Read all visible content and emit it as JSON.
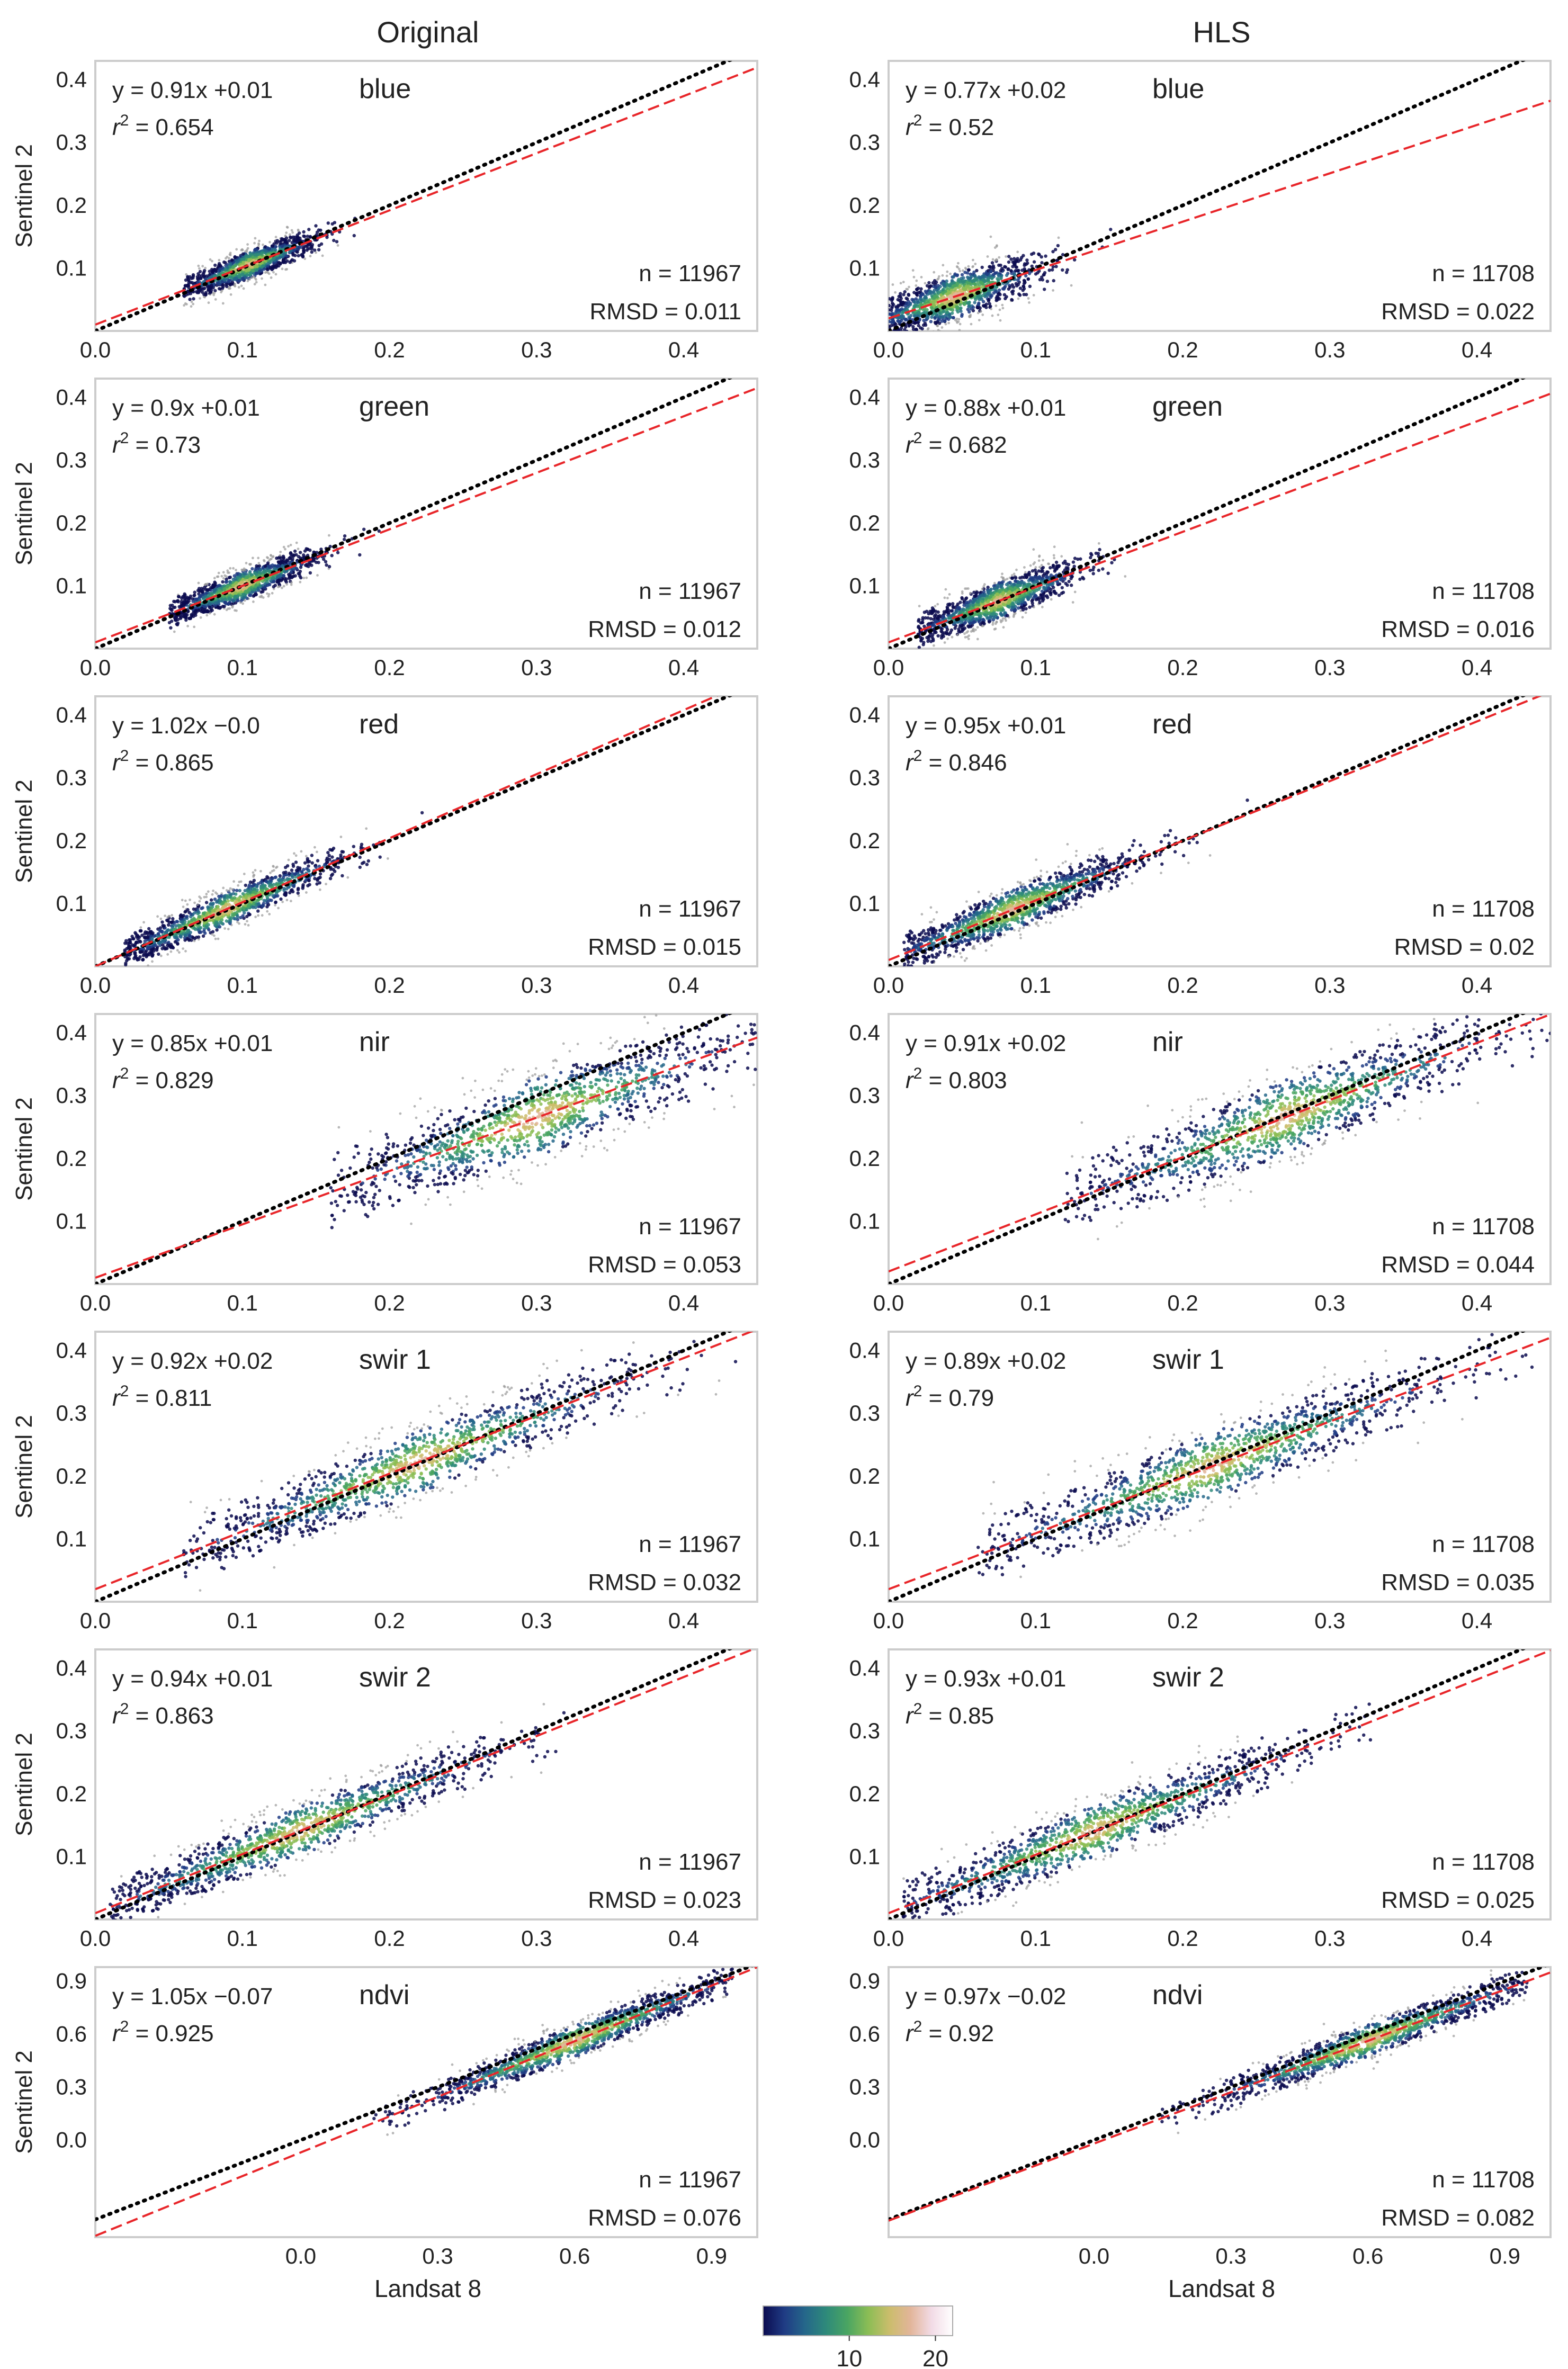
{
  "figure": {
    "column_titles": [
      "Original",
      "HLS"
    ],
    "xlabel": "Landsat 8",
    "ylabel": "Sentinel 2",
    "colorbar": {
      "ticks": [
        "10",
        "20"
      ],
      "tick_values": [
        10,
        20
      ],
      "range": [
        0,
        22
      ],
      "colors": [
        "#0b0b4f",
        "#1f3b84",
        "#25678a",
        "#2e8a7a",
        "#4aa562",
        "#8cbd55",
        "#cbbd6c",
        "#e2b59a",
        "#f2dbe6",
        "#ffffff"
      ]
    },
    "colors": {
      "identity_line": "#000000",
      "fit_line": "#e8262a",
      "frame": "#cccccc",
      "text": "#222222"
    }
  },
  "chart_data": [
    {
      "type": "scatter",
      "column": "Original",
      "band": "blue",
      "equation": "y = 0.91x +0.01",
      "r2": "0.654",
      "n": "n = 11967",
      "rmsd": "RMSD = 0.011",
      "slope": 0.91,
      "intercept": 0.01,
      "xlim": [
        0.0,
        0.45
      ],
      "ylim": [
        0.0,
        0.43
      ],
      "xticks": [
        "0.0",
        "0.1",
        "0.2",
        "0.3",
        "0.4"
      ],
      "xtick_values": [
        0.0,
        0.1,
        0.2,
        0.3,
        0.4
      ],
      "yticks": [
        "0.1",
        "0.2",
        "0.3",
        "0.4"
      ],
      "ytick_values": [
        0.1,
        0.2,
        0.3,
        0.4
      ],
      "cloud": {
        "x_mean": 0.105,
        "x_sd": 0.022,
        "x_min": 0.06,
        "x_max": 0.18,
        "y_sd": 0.012
      }
    },
    {
      "type": "scatter",
      "column": "HLS",
      "band": "blue",
      "equation": "y = 0.77x +0.02",
      "r2": "0.52",
      "n": "n = 11708",
      "rmsd": "RMSD = 0.022",
      "slope": 0.77,
      "intercept": 0.02,
      "xlim": [
        0.0,
        0.45
      ],
      "ylim": [
        0.0,
        0.43
      ],
      "xticks": [
        "0.0",
        "0.1",
        "0.2",
        "0.3",
        "0.4"
      ],
      "xtick_values": [
        0.0,
        0.1,
        0.2,
        0.3,
        0.4
      ],
      "yticks": [
        "0.1",
        "0.2",
        "0.3",
        "0.4"
      ],
      "ytick_values": [
        0.1,
        0.2,
        0.3,
        0.4
      ],
      "cloud": {
        "x_mean": 0.045,
        "x_sd": 0.028,
        "x_min": 0.0,
        "x_max": 0.16,
        "y_sd": 0.02
      }
    },
    {
      "type": "scatter",
      "column": "Original",
      "band": "green",
      "equation": "y = 0.9x +0.01",
      "r2": "0.73",
      "n": "n = 11967",
      "rmsd": "RMSD = 0.012",
      "slope": 0.9,
      "intercept": 0.01,
      "xlim": [
        0.0,
        0.45
      ],
      "ylim": [
        0.0,
        0.43
      ],
      "xticks": [
        "0.0",
        "0.1",
        "0.2",
        "0.3",
        "0.4"
      ],
      "xtick_values": [
        0.0,
        0.1,
        0.2,
        0.3,
        0.4
      ],
      "yticks": [
        "0.1",
        "0.2",
        "0.3",
        "0.4"
      ],
      "ytick_values": [
        0.1,
        0.2,
        0.3,
        0.4
      ],
      "cloud": {
        "x_mean": 0.1,
        "x_sd": 0.025,
        "x_min": 0.05,
        "x_max": 0.2,
        "y_sd": 0.013
      }
    },
    {
      "type": "scatter",
      "column": "HLS",
      "band": "green",
      "equation": "y = 0.88x +0.01",
      "r2": "0.682",
      "n": "n = 11708",
      "rmsd": "RMSD = 0.016",
      "slope": 0.88,
      "intercept": 0.01,
      "xlim": [
        0.0,
        0.45
      ],
      "ylim": [
        0.0,
        0.43
      ],
      "xticks": [
        "0.0",
        "0.1",
        "0.2",
        "0.3",
        "0.4"
      ],
      "xtick_values": [
        0.0,
        0.1,
        0.2,
        0.3,
        0.4
      ],
      "yticks": [
        "0.1",
        "0.2",
        "0.3",
        "0.4"
      ],
      "ytick_values": [
        0.1,
        0.2,
        0.3,
        0.4
      ],
      "cloud": {
        "x_mean": 0.075,
        "x_sd": 0.027,
        "x_min": 0.02,
        "x_max": 0.19,
        "y_sd": 0.016
      }
    },
    {
      "type": "scatter",
      "column": "Original",
      "band": "red",
      "equation": "y = 1.02x −0.0",
      "r2": "0.865",
      "n": "n = 11967",
      "rmsd": "RMSD = 0.015",
      "slope": 1.02,
      "intercept": 0.0,
      "xlim": [
        0.0,
        0.45
      ],
      "ylim": [
        0.0,
        0.43
      ],
      "xticks": [
        "0.0",
        "0.1",
        "0.2",
        "0.3",
        "0.4"
      ],
      "xtick_values": [
        0.0,
        0.1,
        0.2,
        0.3,
        0.4
      ],
      "yticks": [
        "0.1",
        "0.2",
        "0.3",
        "0.4"
      ],
      "ytick_values": [
        0.1,
        0.2,
        0.3,
        0.4
      ],
      "cloud": {
        "x_mean": 0.09,
        "x_sd": 0.04,
        "x_min": 0.02,
        "x_max": 0.25,
        "y_sd": 0.015
      }
    },
    {
      "type": "scatter",
      "column": "HLS",
      "band": "red",
      "equation": "y = 0.95x +0.01",
      "r2": "0.846",
      "n": "n = 11708",
      "rmsd": "RMSD = 0.02",
      "slope": 0.95,
      "intercept": 0.01,
      "xlim": [
        0.0,
        0.45
      ],
      "ylim": [
        0.0,
        0.43
      ],
      "xticks": [
        "0.0",
        "0.1",
        "0.2",
        "0.3",
        "0.4"
      ],
      "xtick_values": [
        0.0,
        0.1,
        0.2,
        0.3,
        0.4
      ],
      "yticks": [
        "0.1",
        "0.2",
        "0.3",
        "0.4"
      ],
      "ytick_values": [
        0.1,
        0.2,
        0.3,
        0.4
      ],
      "cloud": {
        "x_mean": 0.085,
        "x_sd": 0.042,
        "x_min": 0.01,
        "x_max": 0.26,
        "y_sd": 0.018
      }
    },
    {
      "type": "scatter",
      "column": "Original",
      "band": "nir",
      "equation": "y = 0.85x +0.01",
      "r2": "0.829",
      "n": "n = 11967",
      "rmsd": "RMSD = 0.053",
      "slope": 0.85,
      "intercept": 0.01,
      "xlim": [
        0.0,
        0.45
      ],
      "ylim": [
        0.0,
        0.43
      ],
      "xticks": [
        "0.0",
        "0.1",
        "0.2",
        "0.3",
        "0.4"
      ],
      "xtick_values": [
        0.0,
        0.1,
        0.2,
        0.3,
        0.4
      ],
      "yticks": [
        "0.1",
        "0.2",
        "0.3",
        "0.4"
      ],
      "ytick_values": [
        0.1,
        0.2,
        0.3,
        0.4
      ],
      "cloud": {
        "x_mean": 0.3,
        "x_sd": 0.065,
        "x_min": 0.16,
        "x_max": 0.45,
        "y_sd": 0.035
      }
    },
    {
      "type": "scatter",
      "column": "HLS",
      "band": "nir",
      "equation": "y = 0.91x +0.02",
      "r2": "0.803",
      "n": "n = 11708",
      "rmsd": "RMSD = 0.044",
      "slope": 0.91,
      "intercept": 0.02,
      "xlim": [
        0.0,
        0.45
      ],
      "ylim": [
        0.0,
        0.43
      ],
      "xticks": [
        "0.0",
        "0.1",
        "0.2",
        "0.3",
        "0.4"
      ],
      "xtick_values": [
        0.0,
        0.1,
        0.2,
        0.3,
        0.4
      ],
      "yticks": [
        "0.1",
        "0.2",
        "0.3",
        "0.4"
      ],
      "ytick_values": [
        0.1,
        0.2,
        0.3,
        0.4
      ],
      "cloud": {
        "x_mean": 0.27,
        "x_sd": 0.07,
        "x_min": 0.12,
        "x_max": 0.45,
        "y_sd": 0.033
      }
    },
    {
      "type": "scatter",
      "column": "Original",
      "band": "swir 1",
      "equation": "y = 0.92x +0.02",
      "r2": "0.811",
      "n": "n = 11967",
      "rmsd": "RMSD = 0.032",
      "slope": 0.92,
      "intercept": 0.02,
      "xlim": [
        0.0,
        0.45
      ],
      "ylim": [
        0.0,
        0.43
      ],
      "xticks": [
        "0.0",
        "0.1",
        "0.2",
        "0.3",
        "0.4"
      ],
      "xtick_values": [
        0.0,
        0.1,
        0.2,
        0.3,
        0.4
      ],
      "yticks": [
        "0.1",
        "0.2",
        "0.3",
        "0.4"
      ],
      "ytick_values": [
        0.1,
        0.2,
        0.3,
        0.4
      ],
      "cloud": {
        "x_mean": 0.22,
        "x_sd": 0.075,
        "x_min": 0.06,
        "x_max": 0.44,
        "y_sd": 0.028
      }
    },
    {
      "type": "scatter",
      "column": "HLS",
      "band": "swir 1",
      "equation": "y = 0.89x +0.02",
      "r2": "0.79",
      "n": "n = 11708",
      "rmsd": "RMSD = 0.035",
      "slope": 0.89,
      "intercept": 0.02,
      "xlim": [
        0.0,
        0.45
      ],
      "ylim": [
        0.0,
        0.43
      ],
      "xticks": [
        "0.0",
        "0.1",
        "0.2",
        "0.3",
        "0.4"
      ],
      "xtick_values": [
        0.0,
        0.1,
        0.2,
        0.3,
        0.4
      ],
      "yticks": [
        "0.1",
        "0.2",
        "0.3",
        "0.4"
      ],
      "ytick_values": [
        0.1,
        0.2,
        0.3,
        0.4
      ],
      "cloud": {
        "x_mean": 0.22,
        "x_sd": 0.075,
        "x_min": 0.06,
        "x_max": 0.44,
        "y_sd": 0.03
      }
    },
    {
      "type": "scatter",
      "column": "Original",
      "band": "swir 2",
      "equation": "y = 0.94x +0.01",
      "r2": "0.863",
      "n": "n = 11967",
      "rmsd": "RMSD = 0.023",
      "slope": 0.94,
      "intercept": 0.01,
      "xlim": [
        0.0,
        0.45
      ],
      "ylim": [
        0.0,
        0.43
      ],
      "xticks": [
        "0.0",
        "0.1",
        "0.2",
        "0.3",
        "0.4"
      ],
      "xtick_values": [
        0.0,
        0.1,
        0.2,
        0.3,
        0.4
      ],
      "yticks": [
        "0.1",
        "0.2",
        "0.3",
        "0.4"
      ],
      "ytick_values": [
        0.1,
        0.2,
        0.3,
        0.4
      ],
      "cloud": {
        "x_mean": 0.14,
        "x_sd": 0.07,
        "x_min": 0.01,
        "x_max": 0.32,
        "y_sd": 0.022
      }
    },
    {
      "type": "scatter",
      "column": "HLS",
      "band": "swir 2",
      "equation": "y = 0.93x +0.01",
      "r2": "0.85",
      "n": "n = 11708",
      "rmsd": "RMSD = 0.025",
      "slope": 0.93,
      "intercept": 0.01,
      "xlim": [
        0.0,
        0.45
      ],
      "ylim": [
        0.0,
        0.43
      ],
      "xticks": [
        "0.0",
        "0.1",
        "0.2",
        "0.3",
        "0.4"
      ],
      "xtick_values": [
        0.0,
        0.1,
        0.2,
        0.3,
        0.4
      ],
      "yticks": [
        "0.1",
        "0.2",
        "0.3",
        "0.4"
      ],
      "ytick_values": [
        0.1,
        0.2,
        0.3,
        0.4
      ],
      "cloud": {
        "x_mean": 0.14,
        "x_sd": 0.07,
        "x_min": 0.01,
        "x_max": 0.33,
        "y_sd": 0.024
      }
    },
    {
      "type": "scatter",
      "column": "Original",
      "band": "ndvi",
      "equation": "y = 1.05x −0.07",
      "r2": "0.925",
      "n": "n = 11967",
      "rmsd": "RMSD = 0.076",
      "slope": 1.05,
      "intercept": -0.07,
      "xlim": [
        -0.45,
        1.0
      ],
      "ylim": [
        -0.55,
        0.98
      ],
      "xticks": [
        "0.0",
        "0.3",
        "0.6",
        "0.9"
      ],
      "xtick_values": [
        0.0,
        0.3,
        0.6,
        0.9
      ],
      "yticks": [
        "0.0",
        "0.3",
        "0.6",
        "0.9"
      ],
      "ytick_values": [
        0.0,
        0.3,
        0.6,
        0.9
      ],
      "cloud": {
        "x_mean": 0.6,
        "x_sd": 0.17,
        "x_min": 0.15,
        "x_max": 0.95,
        "y_sd": 0.05
      }
    },
    {
      "type": "scatter",
      "column": "HLS",
      "band": "ndvi",
      "equation": "y = 0.97x −0.02",
      "r2": "0.92",
      "n": "n = 11708",
      "rmsd": "RMSD = 0.082",
      "slope": 0.97,
      "intercept": -0.02,
      "xlim": [
        -0.45,
        1.0
      ],
      "ylim": [
        -0.55,
        0.98
      ],
      "xticks": [
        "0.0",
        "0.3",
        "0.6",
        "0.9"
      ],
      "xtick_values": [
        0.0,
        0.3,
        0.6,
        0.9
      ],
      "yticks": [
        "0.0",
        "0.3",
        "0.6",
        "0.9"
      ],
      "ytick_values": [
        0.0,
        0.3,
        0.6,
        0.9
      ],
      "cloud": {
        "x_mean": 0.6,
        "x_sd": 0.17,
        "x_min": 0.13,
        "x_max": 0.95,
        "y_sd": 0.05
      }
    }
  ]
}
